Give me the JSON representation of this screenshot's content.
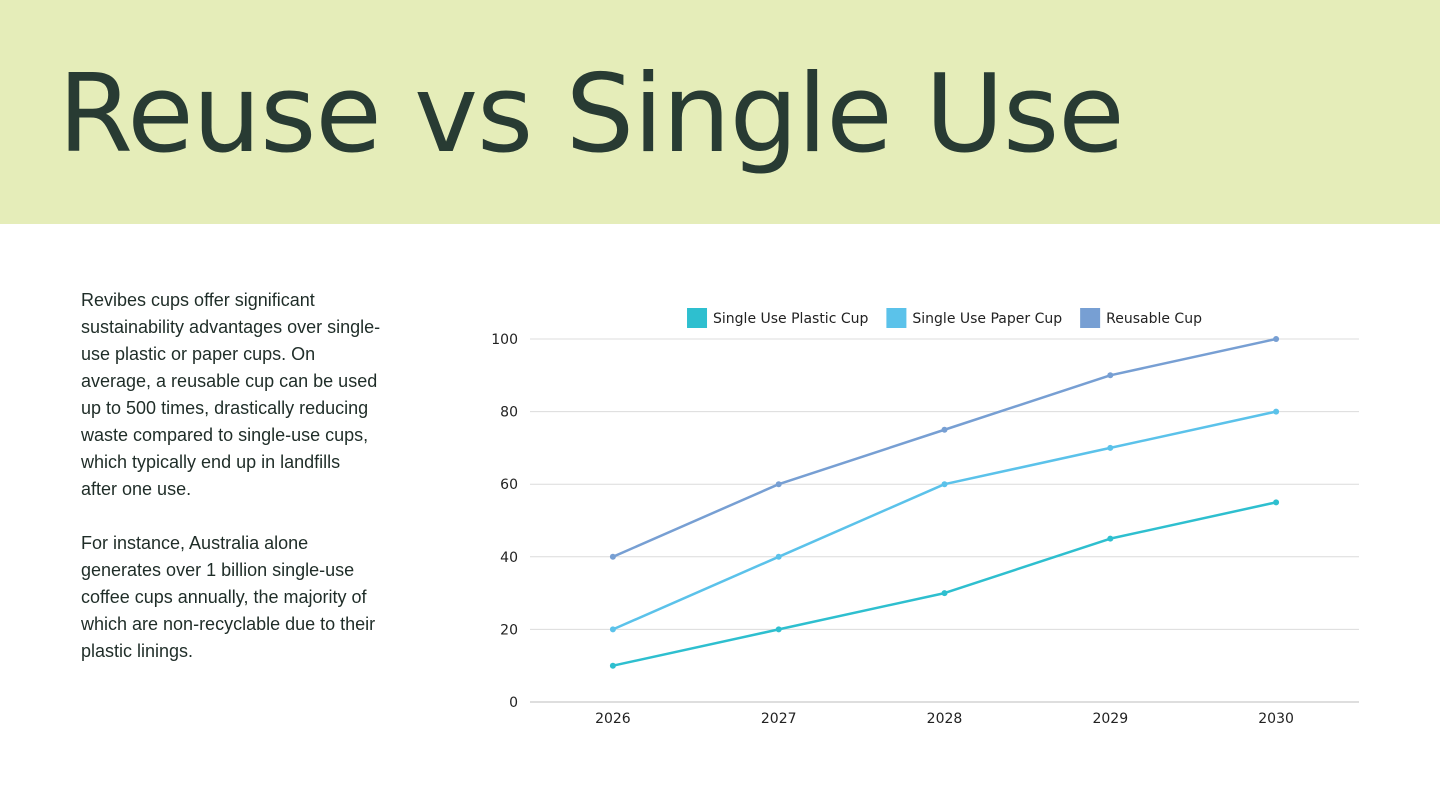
{
  "slide": {
    "title": "Reuse vs Single Use",
    "paragraphs": [
      "Revibes cups offer significant sustainability advantages over single-use plastic or paper cups. On average, a reusable cup can be used up to 500 times, drastically reducing waste compared to single-use cups, which typically end up in landfills after one use.",
      "For instance, Australia alone generates over 1 billion single-use coffee cups annually, the majority of which are non-recyclable due to their plastic linings."
    ],
    "colors": {
      "header_bg": "#e5edb9",
      "title": "#283b33"
    }
  },
  "chart_data": {
    "type": "line",
    "categories": [
      "2026",
      "2027",
      "2028",
      "2029",
      "2030"
    ],
    "series": [
      {
        "name": "Single Use Plastic Cup",
        "values": [
          10,
          20,
          30,
          45,
          55
        ],
        "color": "#2ebfcf"
      },
      {
        "name": "Single Use Paper Cup",
        "values": [
          20,
          40,
          60,
          70,
          80
        ],
        "color": "#5bc2ea"
      },
      {
        "name": "Reusable Cup",
        "values": [
          40,
          60,
          75,
          90,
          100
        ],
        "color": "#779fd3"
      }
    ],
    "ylim": [
      0,
      100
    ],
    "yticks": [
      "0",
      "20",
      "40",
      "60",
      "80",
      "100"
    ],
    "grid": true,
    "legend_position": "top"
  }
}
